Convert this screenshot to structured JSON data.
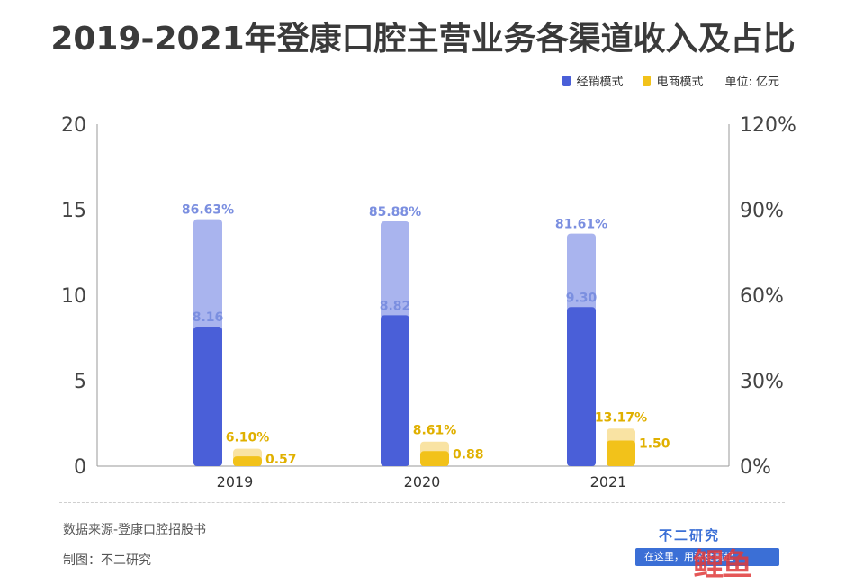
{
  "title": "2019-2021年登康口腔主营业务各渠道收入及占比",
  "legend": {
    "items": [
      {
        "label": "经销模式",
        "color": "#4a5fd8"
      },
      {
        "label": "电商模式",
        "color": "#f2c21a"
      }
    ],
    "unit": "单位: 亿元"
  },
  "footer": {
    "source": "数据来源-登康口腔招股书",
    "maker": "制图：不二研究",
    "brand": "不二研究",
    "slogan": "在这里，用深度赢起",
    "logo": "鲤鱼"
  },
  "chart_data": {
    "type": "bar",
    "categories": [
      "2019",
      "2020",
      "2021"
    ],
    "series": [
      {
        "name": "经销模式",
        "values": [
          8.16,
          8.82,
          9.3
        ],
        "share": [
          86.63,
          85.88,
          81.61
        ],
        "share_labels": [
          "86.63%",
          "85.88%",
          "81.61%"
        ],
        "color": "#4a5fd8",
        "light_color": "#a9b4ee"
      },
      {
        "name": "电商模式",
        "values": [
          0.57,
          0.88,
          1.5
        ],
        "share": [
          6.1,
          8.61,
          13.17
        ],
        "share_labels": [
          "6.10%",
          "8.61%",
          "13.17%"
        ],
        "color": "#f2c21a",
        "light_color": "#f9e3a3"
      }
    ],
    "y_left": {
      "ticks": [
        "0",
        "5",
        "10",
        "15",
        "20"
      ],
      "lim": [
        0,
        20
      ]
    },
    "y_right": {
      "ticks": [
        "0%",
        "30%",
        "60%",
        "90%",
        "120%"
      ],
      "lim": [
        0,
        120
      ]
    }
  }
}
